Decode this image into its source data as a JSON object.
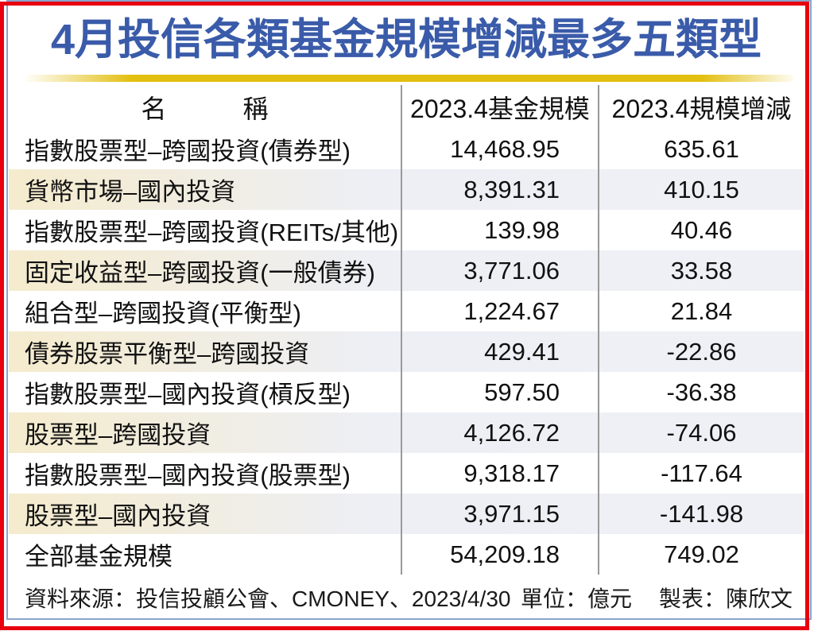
{
  "title": "4月投信各類基金規模增減最多五類型",
  "table": {
    "headers": [
      "名　　　稱",
      "2023.4基金規模",
      "2023.4規模增減"
    ],
    "rows": [
      {
        "name": "指數股票型–跨國投資(債券型)",
        "size": "14,468.95",
        "change": "635.61"
      },
      {
        "name": "貨幣市場–國內投資",
        "size": "8,391.31",
        "change": "410.15"
      },
      {
        "name": "指數股票型–跨國投資(REITs/其他)",
        "size": "139.98",
        "change": "40.46"
      },
      {
        "name": "固定收益型–跨國投資(一般債券)",
        "size": "3,771.06",
        "change": "33.58"
      },
      {
        "name": "組合型–跨國投資(平衡型)",
        "size": "1,224.67",
        "change": "21.84"
      },
      {
        "name": "債券股票平衡型–跨國投資",
        "size": "429.41",
        "change": "-22.86"
      },
      {
        "name": "指數股票型–國內投資(槓反型)",
        "size": "597.50",
        "change": "-36.38"
      },
      {
        "name": "股票型–跨國投資",
        "size": "4,126.72",
        "change": "-74.06"
      },
      {
        "name": "指數股票型–國內投資(股票型)",
        "size": "9,318.17",
        "change": "-117.64"
      },
      {
        "name": "股票型–國內投資",
        "size": "3,971.15",
        "change": "-141.98"
      },
      {
        "name": "全部基金規模",
        "size": "54,209.18",
        "change": "749.02"
      }
    ]
  },
  "footer": {
    "source": "資料來源：投信投顧公會、CMONEY、2023/4/30",
    "unit": "單位：億元",
    "credit": "製表：陳欣文"
  },
  "colors": {
    "frame_red": "#e8000f",
    "frame_blue": "#8aa4cb",
    "title_blue": "#3a5ba9",
    "gold_bar": "#e3bf10",
    "row_shade_left": "#f5ebcd",
    "row_shade_right": "#eef0f5",
    "column_separator": "#999999",
    "text": "#111111"
  }
}
